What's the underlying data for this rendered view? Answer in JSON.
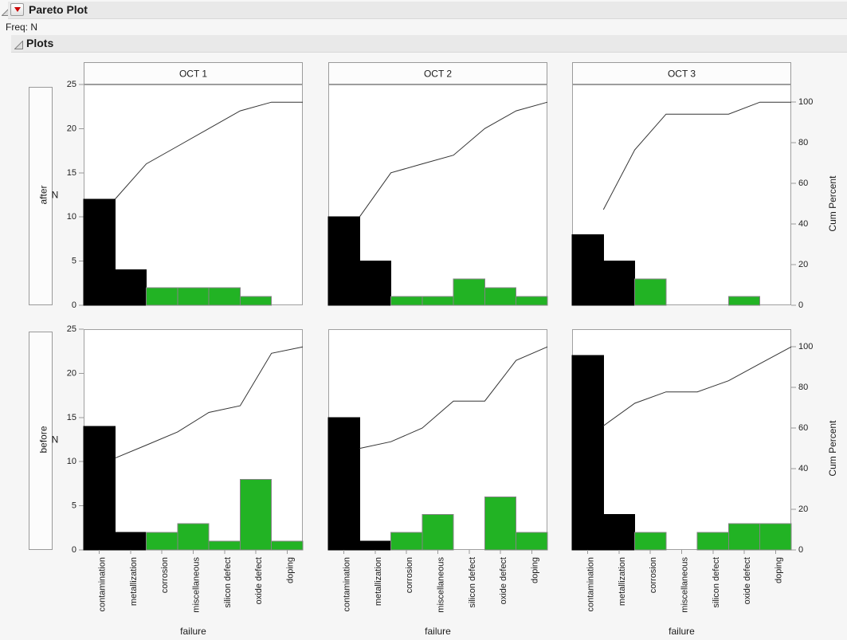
{
  "header": {
    "title": "Pareto Plot",
    "freq_label": "Freq: N"
  },
  "plots_section": {
    "title": "Plots"
  },
  "icons": {
    "outline_disclosure": "open-disclosure-triangle",
    "menu_button": "red-triangle-menu"
  },
  "chart_data": {
    "type": "bar",
    "variant": "pareto small-multiples with cumulative percent line (JMP Pareto Plot grouped by date column and before/after row)",
    "columns": [
      "OCT 1",
      "OCT 2",
      "OCT 3"
    ],
    "rows": [
      "after",
      "before"
    ],
    "categories": [
      "contamination",
      "metallization",
      "corrosion",
      "miscellaneous",
      "silicon defect",
      "oxide defect",
      "doping"
    ],
    "x_axis": {
      "label": "failure"
    },
    "y_axis": {
      "label": "N",
      "min": 0,
      "max": 25,
      "ticks": [
        0,
        5,
        10,
        15,
        20,
        25
      ]
    },
    "right_axis": {
      "label": "Cum Percent",
      "min": 0,
      "max": 100,
      "ticks": [
        0,
        20,
        40,
        60,
        80,
        100
      ],
      "percent_scale_max_n": 23
    },
    "legend": "none",
    "grid": false,
    "bar_color_rule": {
      "vital_categories": [
        "contamination",
        "metallization"
      ],
      "vital_color": "#000000",
      "other_color": "#22b324",
      "bar_stroke": "#848484"
    },
    "line_color": "#333333",
    "plot_border_color": "#a0a0a0",
    "cells": [
      {
        "row": "after",
        "column": "OCT 1",
        "values": [
          12,
          4,
          2,
          2,
          2,
          1,
          0
        ],
        "total": 23,
        "cum_percent": [
          52.2,
          69.6,
          78.3,
          87.0,
          95.7,
          100.0,
          100.0
        ]
      },
      {
        "row": "after",
        "column": "OCT 2",
        "values": [
          10,
          5,
          1,
          1,
          3,
          2,
          1
        ],
        "total": 23,
        "cum_percent": [
          43.5,
          65.2,
          69.6,
          73.9,
          87.0,
          95.7,
          100.0
        ]
      },
      {
        "row": "after",
        "column": "OCT 3",
        "values": [
          8,
          5,
          3,
          0,
          0,
          1,
          0
        ],
        "total": 17,
        "cum_percent": [
          47.1,
          76.5,
          94.1,
          94.1,
          94.1,
          100.0,
          100.0
        ]
      },
      {
        "row": "before",
        "column": "OCT 1",
        "values": [
          14,
          2,
          2,
          3,
          1,
          8,
          1
        ],
        "total": 31,
        "cum_percent": [
          45.2,
          51.6,
          58.1,
          67.7,
          71.0,
          96.8,
          100.0
        ]
      },
      {
        "row": "before",
        "column": "OCT 2",
        "values": [
          15,
          1,
          2,
          4,
          0,
          6,
          2
        ],
        "total": 30,
        "cum_percent": [
          50.0,
          53.3,
          60.0,
          73.3,
          73.3,
          93.3,
          100.0
        ]
      },
      {
        "row": "before",
        "column": "OCT 3",
        "values": [
          22,
          4,
          2,
          0,
          2,
          3,
          3
        ],
        "total": 36,
        "cum_percent": [
          61.1,
          72.2,
          77.8,
          77.8,
          83.3,
          91.7,
          100.0
        ]
      }
    ]
  }
}
